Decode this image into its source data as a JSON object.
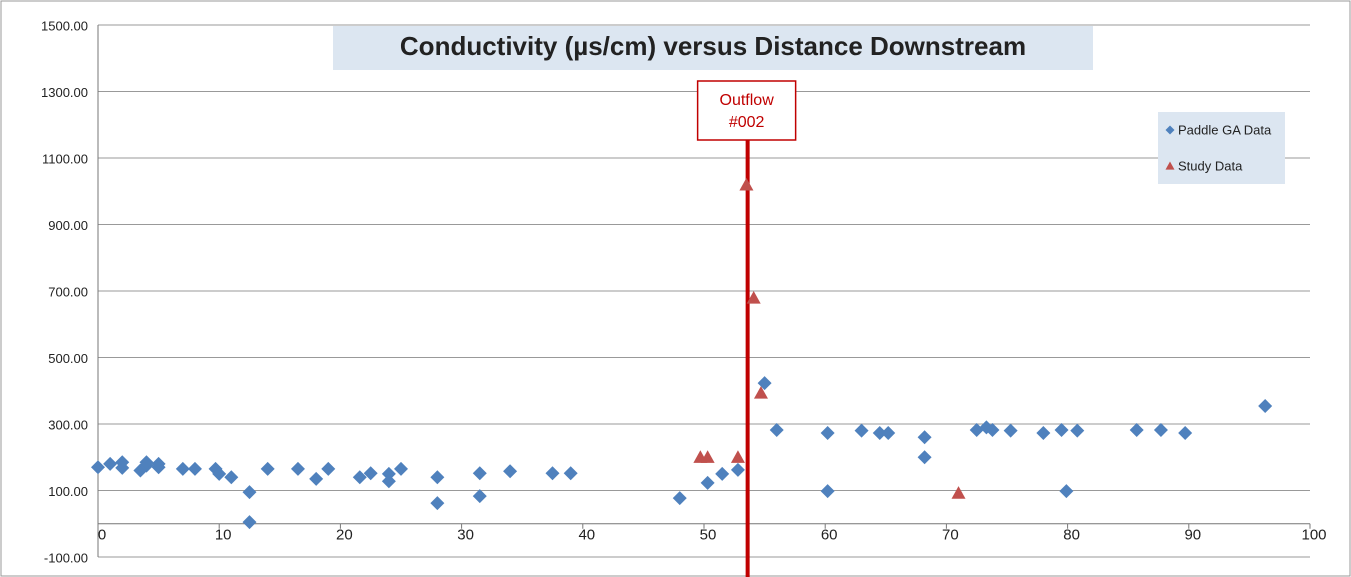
{
  "chart_data": {
    "type": "scatter",
    "title": "Conductivity (µs/cm) versus Distance Downstream",
    "series": [
      {
        "name": "Paddle GA Data",
        "color": "#4f81bd",
        "marker": "diamond",
        "x": [
          0,
          1,
          2,
          2,
          3.5,
          4,
          4,
          5,
          5,
          7,
          8,
          9.7,
          10,
          11,
          12.5,
          12.5,
          14,
          16.5,
          18,
          19,
          21.6,
          22.5,
          24,
          24,
          25,
          28,
          28,
          31.5,
          31.5,
          34,
          37.5,
          39,
          48,
          50.3,
          51.5,
          52.8,
          55,
          56,
          60.2,
          60.2,
          63,
          64.5,
          65.2,
          68.2,
          68.2,
          72.5,
          73.3,
          73.8,
          75.3,
          78,
          79.5,
          79.9,
          80.8,
          85.7,
          87.7,
          89.7,
          96.3
        ],
        "values": [
          170,
          180,
          168,
          185,
          160,
          175,
          185,
          170,
          180,
          165,
          165,
          165,
          150,
          140,
          95,
          5,
          165,
          165,
          135,
          165,
          140,
          152,
          150,
          128,
          165,
          140,
          62,
          152,
          83,
          158,
          152,
          152,
          77,
          123,
          150,
          162,
          423,
          282,
          273,
          98,
          280,
          273,
          273,
          260,
          200,
          282,
          290,
          282,
          280,
          273,
          282,
          98,
          280,
          282,
          282,
          273,
          354
        ]
      },
      {
        "name": "Study Data",
        "color": "#c0504d",
        "marker": "triangle",
        "x": [
          49.7,
          50.3,
          52.8,
          53.5,
          54.1,
          54.7,
          71
        ],
        "values": [
          200,
          200,
          200,
          1019,
          679,
          393,
          92
        ]
      }
    ],
    "xlim": [
      0,
      100
    ],
    "xticks": [
      0,
      10,
      20,
      30,
      40,
      50,
      60,
      70,
      80,
      90,
      100
    ],
    "ylim": [
      -100,
      1500
    ],
    "yticks": [
      {
        "value": -100,
        "label": "-100.00"
      },
      {
        "value": 100,
        "label": "100.00"
      },
      {
        "value": 300,
        "label": "300.00"
      },
      {
        "value": 500,
        "label": "500.00"
      },
      {
        "value": 700,
        "label": "700.00"
      },
      {
        "value": 900,
        "label": "900.00"
      },
      {
        "value": 1100,
        "label": "1100.00"
      },
      {
        "value": 1300,
        "label": "1300.00"
      },
      {
        "value": 1500,
        "label": "1500.00"
      }
    ],
    "grid": true,
    "legend": "top-right",
    "annotation": {
      "lines": [
        "Outflow",
        "#002"
      ],
      "x": 53.6,
      "color": "#c00000"
    }
  }
}
